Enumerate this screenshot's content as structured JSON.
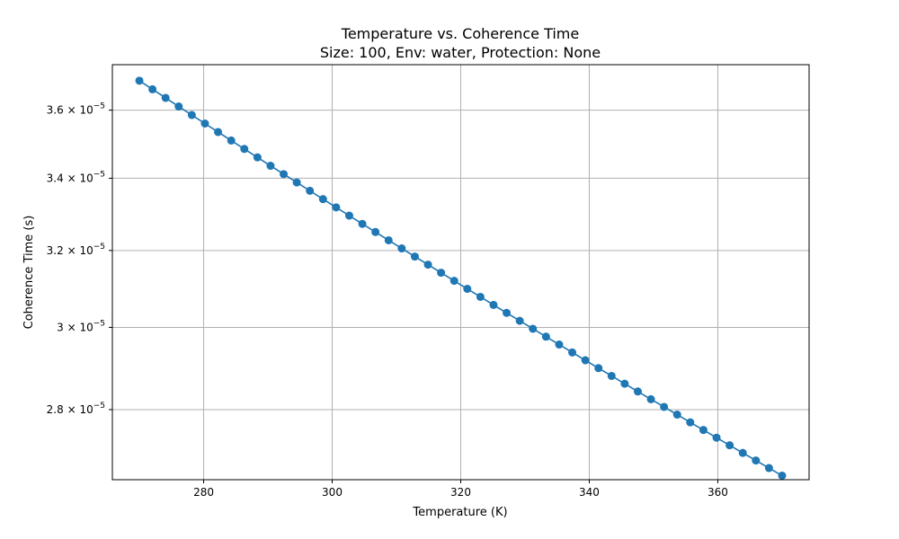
{
  "chart_data": {
    "type": "line",
    "title": "Temperature vs. Coherence Time",
    "subtitle": "Size: 100, Env: water, Protection: None",
    "xlabel": "Temperature (K)",
    "ylabel": "Coherence Time (s)",
    "xscale": "linear",
    "yscale": "log",
    "xlim": [
      265.8,
      374.2
    ],
    "ylim": [
      2.64e-05,
      3.74e-05
    ],
    "grid": true,
    "marker": "circle",
    "color": "#1f77b4",
    "x_ticks": [
      {
        "value": 280,
        "label": "280"
      },
      {
        "value": 300,
        "label": "300"
      },
      {
        "value": 320,
        "label": "320"
      },
      {
        "value": 340,
        "label": "340"
      },
      {
        "value": 360,
        "label": "360"
      }
    ],
    "y_ticks": [
      {
        "value": 2.8e-05,
        "mantissa": "2.8 × 10",
        "exponent": "−5"
      },
      {
        "value": 3e-05,
        "mantissa": "3 × 10",
        "exponent": "−5"
      },
      {
        "value": 3.2e-05,
        "mantissa": "3.2 × 10",
        "exponent": "−5"
      },
      {
        "value": 3.4e-05,
        "mantissa": "3.4 × 10",
        "exponent": "−5"
      },
      {
        "value": 3.6e-05,
        "mantissa": "3.6 × 10",
        "exponent": "−5"
      }
    ],
    "series": [
      {
        "name": "Coherence Time",
        "x": [
          270.0,
          272.04,
          274.08,
          276.12,
          278.16,
          280.2,
          282.24,
          284.29,
          286.33,
          288.37,
          290.41,
          292.45,
          294.49,
          296.53,
          298.57,
          300.61,
          302.65,
          304.69,
          306.73,
          308.78,
          310.82,
          312.86,
          314.9,
          316.94,
          318.98,
          321.02,
          323.06,
          325.1,
          327.14,
          329.18,
          331.22,
          333.27,
          335.31,
          337.35,
          339.39,
          341.43,
          343.47,
          345.51,
          347.55,
          349.59,
          351.63,
          353.67,
          355.71,
          357.76,
          359.8,
          361.84,
          363.88,
          365.92,
          367.96,
          370.0
        ],
        "y": [
          3.6901e-05,
          3.6635e-05,
          3.6372e-05,
          3.6111e-05,
          3.5853e-05,
          3.5598e-05,
          3.5345e-05,
          3.5094e-05,
          3.4847e-05,
          3.4601e-05,
          3.4358e-05,
          3.4118e-05,
          3.388e-05,
          3.3644e-05,
          3.341e-05,
          3.3179e-05,
          3.295e-05,
          3.2723e-05,
          3.2499e-05,
          3.2276e-05,
          3.2056e-05,
          3.1838e-05,
          3.1622e-05,
          3.1408e-05,
          3.1196e-05,
          3.0986e-05,
          3.0778e-05,
          3.0572e-05,
          3.0368e-05,
          3.0166e-05,
          2.9966e-05,
          2.9767e-05,
          2.9571e-05,
          2.9376e-05,
          2.9183e-05,
          2.8992e-05,
          2.8803e-05,
          2.8615e-05,
          2.8429e-05,
          2.8245e-05,
          2.8063e-05,
          2.7882e-05,
          2.7702e-05,
          2.7525e-05,
          2.7348e-05,
          2.7174e-05,
          2.7001e-05,
          2.683e-05,
          2.6659e-05,
          2.6491e-05
        ]
      }
    ]
  }
}
